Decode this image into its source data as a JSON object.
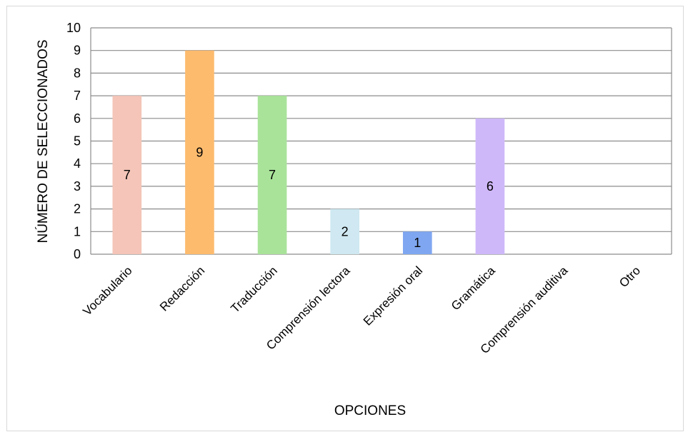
{
  "chart_data": {
    "type": "bar",
    "title": "",
    "xlabel": "OPCIONES",
    "ylabel": "NÚMERO DE SELECCIONADOS",
    "ylim": [
      0,
      10
    ],
    "yticks": [
      0,
      1,
      2,
      3,
      4,
      5,
      6,
      7,
      8,
      9,
      10
    ],
    "grid": true,
    "legend": "none",
    "categories": [
      "Vocabulario",
      "Redacción",
      "Traducción",
      "Comprensión lectora",
      "Expresión oral",
      "Gramática",
      "Comprensión auditiva",
      "Otro"
    ],
    "values": [
      7,
      9,
      7,
      2,
      1,
      6,
      0,
      0
    ],
    "data_labels": [
      "7",
      "9",
      "7",
      "2",
      "1",
      "6",
      "",
      ""
    ],
    "colors": [
      "#f4c5b8",
      "#fdbb6e",
      "#a9e39a",
      "#cfe8f1",
      "#7fa7f1",
      "#cfb8fa",
      "#cccccc",
      "#cccccc"
    ]
  }
}
